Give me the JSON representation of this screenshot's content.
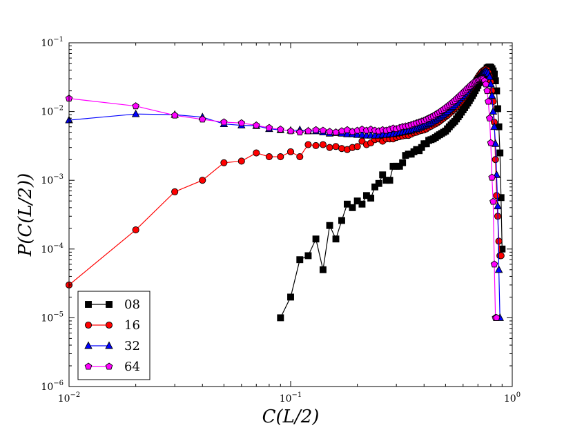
{
  "chart_data": {
    "type": "line",
    "title": "",
    "xlabel": "C(L/2)",
    "ylabel": "P(C(L/2))",
    "xscale": "log",
    "yscale": "log",
    "xlim": [
      0.01,
      1
    ],
    "ylim": [
      1e-06,
      0.1
    ],
    "grid": false,
    "legend_position": "lower-left",
    "x_ticks": [
      {
        "value": 0.01,
        "base": "10",
        "exp": "−2"
      },
      {
        "value": 0.1,
        "base": "10",
        "exp": "−1"
      },
      {
        "value": 1,
        "base": "10",
        "exp": "0"
      }
    ],
    "y_ticks": [
      {
        "value": 1e-06,
        "base": "10",
        "exp": "−6"
      },
      {
        "value": 1e-05,
        "base": "10",
        "exp": "−5"
      },
      {
        "value": 0.0001,
        "base": "10",
        "exp": "−4"
      },
      {
        "value": 0.001,
        "base": "10",
        "exp": "−3"
      },
      {
        "value": 0.01,
        "base": "10",
        "exp": "−2"
      },
      {
        "value": 0.1,
        "base": "10",
        "exp": "−1"
      }
    ],
    "series": [
      {
        "name": "08",
        "color": "#000000",
        "marker": "square",
        "x": [
          0.09,
          0.1,
          0.11,
          0.12,
          0.13,
          0.14,
          0.15,
          0.16,
          0.17,
          0.18,
          0.19,
          0.2,
          0.21,
          0.22,
          0.23,
          0.24,
          0.25,
          0.26,
          0.27,
          0.28,
          0.29,
          0.3,
          0.31,
          0.32,
          0.33,
          0.34,
          0.35,
          0.36,
          0.37,
          0.38,
          0.39,
          0.4,
          0.41,
          0.42,
          0.43,
          0.44,
          0.45,
          0.46,
          0.47,
          0.48,
          0.49,
          0.5,
          0.51,
          0.52,
          0.53,
          0.54,
          0.55,
          0.56,
          0.57,
          0.58,
          0.59,
          0.6,
          0.61,
          0.62,
          0.63,
          0.64,
          0.65,
          0.66,
          0.67,
          0.68,
          0.69,
          0.7,
          0.71,
          0.72,
          0.73,
          0.74,
          0.75,
          0.76,
          0.77,
          0.78,
          0.79,
          0.8,
          0.81,
          0.82,
          0.83,
          0.84,
          0.85,
          0.86,
          0.87,
          0.88,
          0.89,
          0.9
        ],
        "y": [
          1e-05,
          2e-05,
          7e-05,
          8e-05,
          0.00014,
          5e-05,
          0.00022,
          0.00014,
          0.00026,
          0.00045,
          0.0004,
          0.0005,
          0.00045,
          0.0006,
          0.00055,
          0.0008,
          0.0009,
          0.0012,
          0.001,
          0.001,
          0.0016,
          0.0016,
          0.0016,
          0.0018,
          0.0023,
          0.0024,
          0.0024,
          0.0026,
          0.0028,
          0.0027,
          0.003,
          0.0034,
          0.0034,
          0.0038,
          0.0039,
          0.004,
          0.0042,
          0.0044,
          0.0046,
          0.0048,
          0.005,
          0.0052,
          0.0056,
          0.006,
          0.0064,
          0.0068,
          0.0072,
          0.0078,
          0.0084,
          0.009,
          0.0098,
          0.0106,
          0.0114,
          0.0123,
          0.0133,
          0.0144,
          0.0156,
          0.017,
          0.0185,
          0.0202,
          0.022,
          0.024,
          0.0262,
          0.0286,
          0.0312,
          0.034,
          0.037,
          0.04,
          0.043,
          0.044,
          0.0445,
          0.044,
          0.042,
          0.039,
          0.035,
          0.028,
          0.02,
          0.011,
          0.006,
          0.0025,
          0.00056,
          0.0001
        ]
      },
      {
        "name": "16",
        "color": "#ff0000",
        "marker": "circle",
        "x": [
          0.01,
          0.02,
          0.03,
          0.04,
          0.05,
          0.06,
          0.07,
          0.08,
          0.09,
          0.1,
          0.11,
          0.12,
          0.13,
          0.14,
          0.15,
          0.16,
          0.17,
          0.18,
          0.19,
          0.2,
          0.21,
          0.22,
          0.23,
          0.24,
          0.25,
          0.26,
          0.27,
          0.28,
          0.29,
          0.3,
          0.31,
          0.32,
          0.33,
          0.34,
          0.35,
          0.36,
          0.37,
          0.38,
          0.39,
          0.4,
          0.41,
          0.42,
          0.43,
          0.44,
          0.45,
          0.46,
          0.47,
          0.48,
          0.49,
          0.5,
          0.51,
          0.52,
          0.53,
          0.54,
          0.55,
          0.56,
          0.57,
          0.58,
          0.59,
          0.6,
          0.61,
          0.62,
          0.63,
          0.64,
          0.65,
          0.66,
          0.67,
          0.68,
          0.69,
          0.7,
          0.71,
          0.72,
          0.73,
          0.74,
          0.75,
          0.76,
          0.77,
          0.78,
          0.79,
          0.8,
          0.81,
          0.82,
          0.83,
          0.84,
          0.85,
          0.86,
          0.87,
          0.88,
          0.89
        ],
        "y": [
          3e-05,
          0.00019,
          0.00068,
          0.001,
          0.0018,
          0.0019,
          0.0025,
          0.0022,
          0.0022,
          0.0026,
          0.0022,
          0.0033,
          0.0032,
          0.0033,
          0.003,
          0.0031,
          0.0029,
          0.0028,
          0.003,
          0.0031,
          0.0037,
          0.0033,
          0.0035,
          0.0039,
          0.004,
          0.0037,
          0.004,
          0.004,
          0.004,
          0.0042,
          0.0043,
          0.0044,
          0.0045,
          0.0045,
          0.0047,
          0.0049,
          0.005,
          0.0052,
          0.0053,
          0.0054,
          0.0056,
          0.0059,
          0.0061,
          0.0064,
          0.0066,
          0.0069,
          0.0072,
          0.0076,
          0.008,
          0.0084,
          0.0088,
          0.0093,
          0.0098,
          0.0104,
          0.011,
          0.0117,
          0.0125,
          0.0133,
          0.0142,
          0.0152,
          0.0163,
          0.0175,
          0.0188,
          0.0202,
          0.0217,
          0.0234,
          0.0252,
          0.0272,
          0.0293,
          0.0315,
          0.0338,
          0.036,
          0.038,
          0.0395,
          0.0405,
          0.041,
          0.04,
          0.037,
          0.033,
          0.027,
          0.02,
          0.014,
          0.007,
          0.002,
          0.0006,
          0.0003,
          0.00013,
          8e-05,
          8e-05
        ]
      },
      {
        "name": "32",
        "color": "#0000ff",
        "marker": "triangle",
        "x": [
          0.01,
          0.02,
          0.03,
          0.04,
          0.05,
          0.06,
          0.07,
          0.08,
          0.09,
          0.1,
          0.11,
          0.12,
          0.13,
          0.14,
          0.15,
          0.16,
          0.17,
          0.18,
          0.19,
          0.2,
          0.21,
          0.22,
          0.23,
          0.24,
          0.25,
          0.26,
          0.27,
          0.28,
          0.29,
          0.3,
          0.31,
          0.32,
          0.33,
          0.34,
          0.35,
          0.36,
          0.37,
          0.38,
          0.39,
          0.4,
          0.41,
          0.42,
          0.43,
          0.44,
          0.45,
          0.46,
          0.47,
          0.48,
          0.49,
          0.5,
          0.51,
          0.52,
          0.53,
          0.54,
          0.55,
          0.56,
          0.57,
          0.58,
          0.59,
          0.6,
          0.61,
          0.62,
          0.63,
          0.64,
          0.65,
          0.66,
          0.67,
          0.68,
          0.69,
          0.7,
          0.71,
          0.72,
          0.73,
          0.74,
          0.75,
          0.76,
          0.77,
          0.78,
          0.79,
          0.8,
          0.81,
          0.82,
          0.83,
          0.84,
          0.85,
          0.86,
          0.87,
          0.88
        ],
        "y": [
          0.0075,
          0.0092,
          0.009,
          0.0083,
          0.0066,
          0.0063,
          0.0062,
          0.0056,
          0.0054,
          0.0053,
          0.0054,
          0.0052,
          0.0052,
          0.005,
          0.0048,
          0.0049,
          0.0048,
          0.0047,
          0.0047,
          0.0046,
          0.0046,
          0.0045,
          0.0045,
          0.0045,
          0.0045,
          0.0046,
          0.0046,
          0.0047,
          0.0047,
          0.0048,
          0.0049,
          0.005,
          0.0051,
          0.0052,
          0.0053,
          0.0055,
          0.0056,
          0.0058,
          0.006,
          0.0062,
          0.0064,
          0.0066,
          0.0069,
          0.0072,
          0.0075,
          0.0078,
          0.0082,
          0.0086,
          0.009,
          0.0095,
          0.01,
          0.0106,
          0.0112,
          0.0118,
          0.0125,
          0.0133,
          0.0141,
          0.015,
          0.016,
          0.017,
          0.0181,
          0.0193,
          0.0206,
          0.022,
          0.0235,
          0.025,
          0.0265,
          0.028,
          0.0295,
          0.031,
          0.0325,
          0.034,
          0.0355,
          0.0368,
          0.038,
          0.0385,
          0.038,
          0.036,
          0.032,
          0.025,
          0.017,
          0.01,
          0.006,
          0.0034,
          0.0012,
          0.00042,
          5e-05,
          1e-05
        ]
      },
      {
        "name": "64",
        "color": "#ff00ff",
        "marker": "pentagon",
        "x": [
          0.01,
          0.02,
          0.03,
          0.04,
          0.05,
          0.06,
          0.07,
          0.08,
          0.09,
          0.1,
          0.11,
          0.12,
          0.13,
          0.14,
          0.15,
          0.16,
          0.17,
          0.18,
          0.19,
          0.2,
          0.21,
          0.22,
          0.23,
          0.24,
          0.25,
          0.26,
          0.27,
          0.28,
          0.29,
          0.3,
          0.31,
          0.32,
          0.33,
          0.34,
          0.35,
          0.36,
          0.37,
          0.38,
          0.39,
          0.4,
          0.41,
          0.42,
          0.43,
          0.44,
          0.45,
          0.46,
          0.47,
          0.48,
          0.49,
          0.5,
          0.51,
          0.52,
          0.53,
          0.54,
          0.55,
          0.56,
          0.57,
          0.58,
          0.59,
          0.6,
          0.61,
          0.62,
          0.63,
          0.64,
          0.65,
          0.66,
          0.67,
          0.68,
          0.69,
          0.7,
          0.71,
          0.72,
          0.73,
          0.74,
          0.75,
          0.76,
          0.77,
          0.78,
          0.79,
          0.8,
          0.81,
          0.82,
          0.83,
          0.84,
          0.85
        ],
        "y": [
          0.0155,
          0.012,
          0.0088,
          0.0077,
          0.007,
          0.0068,
          0.0063,
          0.0058,
          0.0055,
          0.0052,
          0.005,
          0.0052,
          0.0054,
          0.0053,
          0.0051,
          0.005,
          0.0052,
          0.0054,
          0.0051,
          0.0053,
          0.0055,
          0.0053,
          0.0055,
          0.0053,
          0.0052,
          0.0054,
          0.0053,
          0.0055,
          0.0057,
          0.0056,
          0.0058,
          0.006,
          0.0061,
          0.0062,
          0.0064,
          0.0066,
          0.0068,
          0.007,
          0.0072,
          0.0074,
          0.0077,
          0.008,
          0.0083,
          0.0086,
          0.009,
          0.0094,
          0.0098,
          0.0103,
          0.0108,
          0.0113,
          0.0119,
          0.0125,
          0.0131,
          0.0138,
          0.0145,
          0.0153,
          0.0161,
          0.017,
          0.0179,
          0.0188,
          0.0198,
          0.0208,
          0.0219,
          0.023,
          0.0241,
          0.0252,
          0.0263,
          0.0273,
          0.0282,
          0.029,
          0.0296,
          0.03,
          0.03,
          0.0295,
          0.028,
          0.025,
          0.02,
          0.014,
          0.008,
          0.0035,
          0.0011,
          0.00049,
          6e-05,
          1e-05,
          1e-05
        ]
      }
    ]
  }
}
